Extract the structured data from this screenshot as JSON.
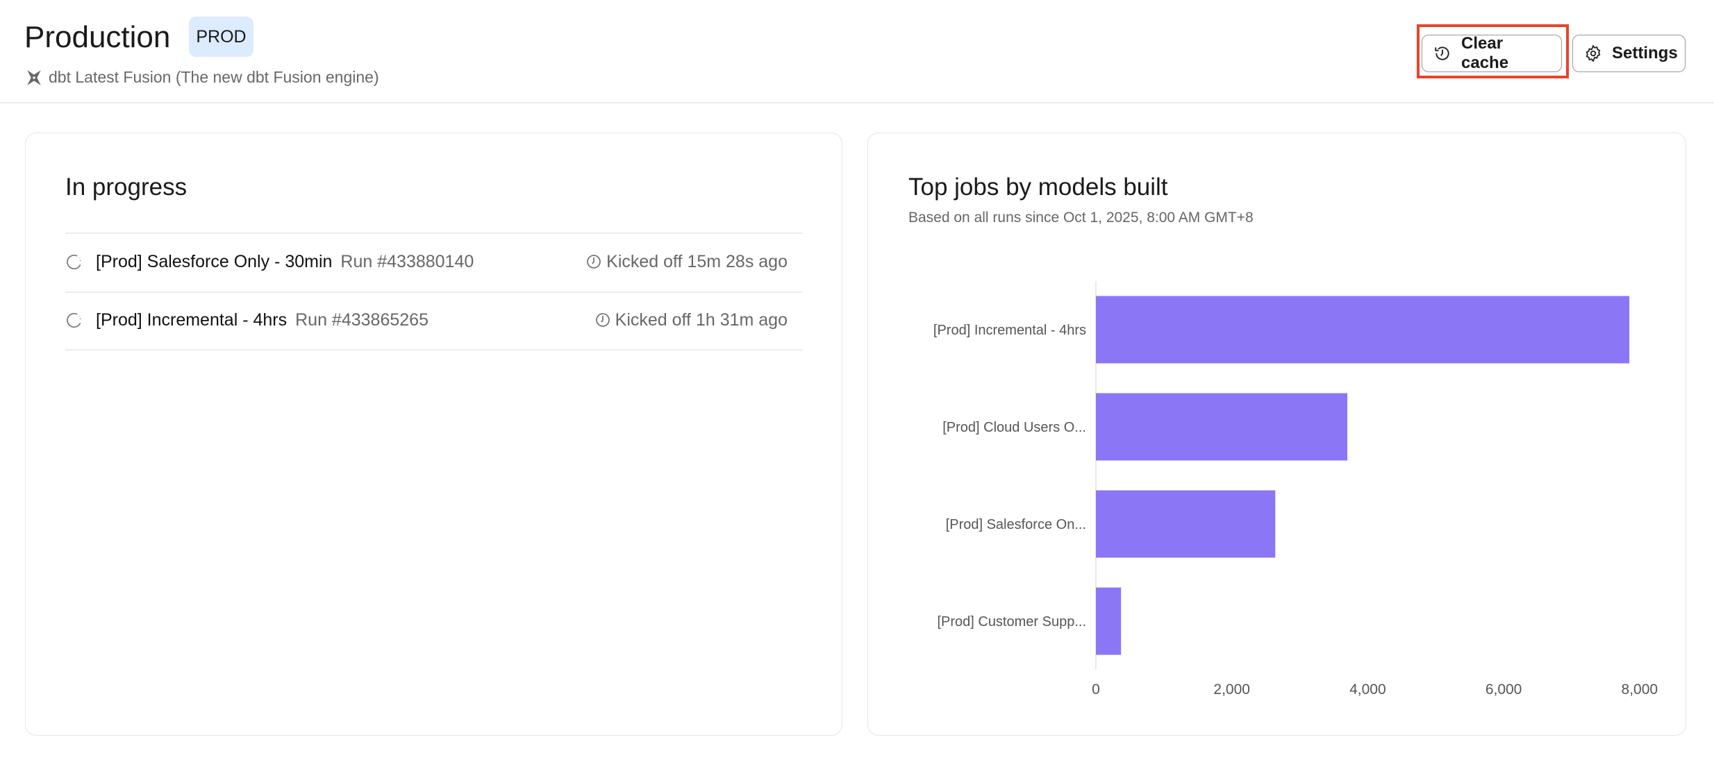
{
  "header": {
    "title": "Production",
    "badge": "PROD",
    "subtitle": "dbt Latest Fusion (The new dbt Fusion engine)",
    "subtitle_icon": "dbt-logo-icon",
    "clear_cache_label": "Clear cache",
    "settings_label": "Settings"
  },
  "in_progress": {
    "title": "In progress",
    "runs": [
      {
        "name": "[Prod] Salesforce Only - 30min",
        "run": "Run #433880140",
        "kicked": "Kicked off 15m 28s ago"
      },
      {
        "name": "[Prod] Incremental - 4hrs",
        "run": "Run #433865265",
        "kicked": "Kicked off 1h 31m ago"
      }
    ]
  },
  "top_jobs": {
    "title": "Top jobs by models built",
    "subtitle": "Based on all runs since Oct 1, 2025, 8:00 AM GMT+8"
  },
  "colors": {
    "bar": "#8b77f6",
    "highlight": "#e8442a",
    "badge_bg": "#dcebfd"
  },
  "chart_data": {
    "type": "bar",
    "orientation": "horizontal",
    "categories": [
      "[Prod] Incremental - 4hrs",
      "[Prod] Cloud Users O...",
      "[Prod] Salesforce On...",
      "[Prod] Customer Supp..."
    ],
    "values": [
      7850,
      3700,
      2640,
      370
    ],
    "xlim": [
      0,
      8000
    ],
    "xticks": [
      "0",
      "2,000",
      "4,000",
      "6,000",
      "8,000"
    ],
    "grid": false
  }
}
